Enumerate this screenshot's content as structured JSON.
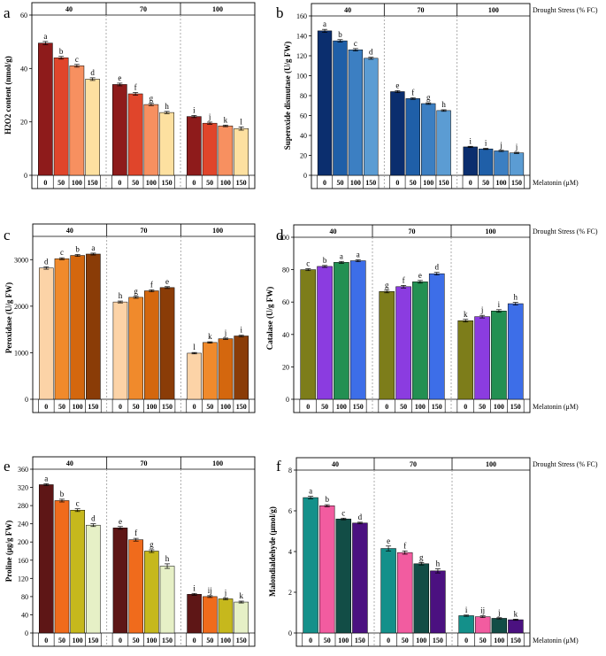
{
  "figure": {
    "side_labels": {
      "drought": "Drought Stress (% FC)",
      "melatonin": "Melatonin (μM)"
    },
    "groups": [
      "40",
      "70",
      "100"
    ],
    "categories": [
      "0",
      "50",
      "100",
      "150"
    ]
  },
  "chart_data": [
    {
      "id": "a",
      "panel": "a",
      "type": "bar",
      "ylabel": "H2O2 content (nmol/g)",
      "ylim": [
        0,
        60
      ],
      "yticks": [
        0,
        20,
        40,
        60
      ],
      "groups": [
        "40",
        "70",
        "100"
      ],
      "categories": [
        "0",
        "50",
        "100",
        "150"
      ],
      "colors": [
        "#8e1b1b",
        "#e0452b",
        "#f79060",
        "#fde0a0"
      ],
      "values": [
        [
          49.5,
          44,
          41,
          36
        ],
        [
          34,
          30.5,
          26.5,
          23.5
        ],
        [
          22,
          19.5,
          18.5,
          17.5
        ]
      ],
      "errors": [
        [
          0.6,
          0.5,
          0.5,
          0.5
        ],
        [
          0.5,
          0.5,
          0.4,
          0.4
        ],
        [
          0.4,
          0.4,
          0.3,
          0.6
        ]
      ],
      "letters": [
        [
          "a",
          "b",
          "c",
          "d"
        ],
        [
          "e",
          "f",
          "g",
          "h"
        ],
        [
          "i",
          "j",
          "k",
          "l"
        ]
      ],
      "show_drought": false,
      "show_melatonin": false
    },
    {
      "id": "b",
      "panel": "b",
      "type": "bar",
      "ylabel": "Superoxide dismutase (U/g FW)",
      "ylim": [
        0,
        160
      ],
      "yticks": [
        0,
        20,
        40,
        60,
        80,
        100,
        120,
        140,
        160
      ],
      "groups": [
        "40",
        "70",
        "100"
      ],
      "categories": [
        "0",
        "50",
        "100",
        "150"
      ],
      "colors": [
        "#0b2e6e",
        "#1f5fa8",
        "#3c7fc2",
        "#5b9cd3"
      ],
      "values": [
        [
          145,
          135,
          126,
          117.5
        ],
        [
          84,
          77,
          72,
          65
        ],
        [
          28.5,
          26.5,
          24.5,
          22.5
        ]
      ],
      "errors": [
        [
          1.5,
          1.2,
          1.2,
          1
        ],
        [
          1,
          0.8,
          0.8,
          0.8
        ],
        [
          0.6,
          0.6,
          0.6,
          0.6
        ]
      ],
      "letters": [
        [
          "a",
          "b",
          "c",
          "d"
        ],
        [
          "e",
          "f",
          "g",
          "h"
        ],
        [
          "i",
          "i",
          "j",
          "j"
        ]
      ],
      "show_drought": true,
      "show_melatonin": true
    },
    {
      "id": "c",
      "panel": "c",
      "type": "bar",
      "ylabel": "Peroxidase (U/g FW)",
      "ylim": [
        0,
        3500
      ],
      "yticks": [
        0,
        1000,
        2000,
        3000
      ],
      "groups": [
        "40",
        "70",
        "100"
      ],
      "categories": [
        "0",
        "50",
        "100",
        "150"
      ],
      "colors": [
        "#fcd3a7",
        "#f08a2c",
        "#d4670e",
        "#8a3c07"
      ],
      "values": [
        [
          2820,
          3020,
          3090,
          3120
        ],
        [
          2090,
          2190,
          2330,
          2400
        ],
        [
          990,
          1220,
          1300,
          1360
        ]
      ],
      "errors": [
        [
          25,
          20,
          20,
          20
        ],
        [
          20,
          20,
          20,
          20
        ],
        [
          15,
          15,
          15,
          15
        ]
      ],
      "letters": [
        [
          "d",
          "c",
          "b",
          "a"
        ],
        [
          "h",
          "g",
          "f",
          "e"
        ],
        [
          "l",
          "k",
          "j",
          "i"
        ]
      ],
      "show_drought": false,
      "show_melatonin": false
    },
    {
      "id": "d",
      "panel": "d",
      "type": "bar",
      "ylabel": "Catalase (U/g FW)",
      "ylim": [
        0,
        100
      ],
      "yticks": [
        0,
        20,
        40,
        60,
        80,
        100
      ],
      "groups": [
        "40",
        "70",
        "100"
      ],
      "categories": [
        "0",
        "50",
        "100",
        "150"
      ],
      "colors": [
        "#7d7d1a",
        "#8b3ce0",
        "#239052",
        "#3d6ee8"
      ],
      "values": [
        [
          80,
          82,
          84.5,
          85.5
        ],
        [
          66.5,
          69.5,
          72.5,
          77.5
        ],
        [
          48.5,
          51,
          54.5,
          59
        ]
      ],
      "errors": [
        [
          0.6,
          0.6,
          0.6,
          0.6
        ],
        [
          0.8,
          0.8,
          0.8,
          0.8
        ],
        [
          0.8,
          0.8,
          0.8,
          0.8
        ]
      ],
      "letters": [
        [
          "c",
          "b",
          "a",
          "a"
        ],
        [
          "g",
          "f",
          "e",
          "d"
        ],
        [
          "k",
          "j",
          "i",
          "h"
        ]
      ],
      "show_drought": true,
      "show_melatonin": true
    },
    {
      "id": "e",
      "panel": "e",
      "type": "bar",
      "ylabel": "Proline (μg/g FW)",
      "ylim": [
        0,
        360
      ],
      "yticks": [
        0,
        40,
        80,
        120,
        160,
        200,
        240,
        280,
        320,
        360
      ],
      "groups": [
        "40",
        "70",
        "100"
      ],
      "categories": [
        "0",
        "50",
        "100",
        "150"
      ],
      "colors": [
        "#5e1616",
        "#f06b1c",
        "#c6b81d",
        "#e6f0c6"
      ],
      "values": [
        [
          326,
          291,
          270,
          237
        ],
        [
          231,
          205,
          180,
          147
        ],
        [
          85,
          80,
          75,
          68
        ]
      ],
      "errors": [
        [
          2,
          3,
          3,
          3
        ],
        [
          3,
          3,
          3,
          5
        ],
        [
          2,
          2,
          2,
          2
        ]
      ],
      "letters": [
        [
          "a",
          "b",
          "c",
          "d"
        ],
        [
          "e",
          "f",
          "g",
          "h"
        ],
        [
          "i",
          "ij",
          "j",
          "k"
        ]
      ],
      "show_drought": false,
      "show_melatonin": false
    },
    {
      "id": "f",
      "panel": "f",
      "type": "bar",
      "ylabel": "Malondialdehyde (μmol/g)",
      "ylim": [
        0,
        8
      ],
      "yticks": [
        0,
        2,
        4,
        6,
        8
      ],
      "groups": [
        "40",
        "70",
        "100"
      ],
      "categories": [
        "0",
        "50",
        "100",
        "150"
      ],
      "colors": [
        "#14908a",
        "#f25ca0",
        "#124d46",
        "#4b1180"
      ],
      "values": [
        [
          6.65,
          6.25,
          5.6,
          5.4
        ],
        [
          4.15,
          3.95,
          3.4,
          3.05
        ],
        [
          0.85,
          0.8,
          0.72,
          0.65
        ]
      ],
      "errors": [
        [
          0.06,
          0.05,
          0.04,
          0.04
        ],
        [
          0.12,
          0.08,
          0.06,
          0.1
        ],
        [
          0.03,
          0.04,
          0.03,
          0.03
        ]
      ],
      "letters": [
        [
          "a",
          "b",
          "c",
          "d"
        ],
        [
          "e",
          "f",
          "g",
          "h"
        ],
        [
          "i",
          "ij",
          "j",
          "k"
        ]
      ],
      "show_drought": true,
      "show_melatonin": true
    }
  ]
}
